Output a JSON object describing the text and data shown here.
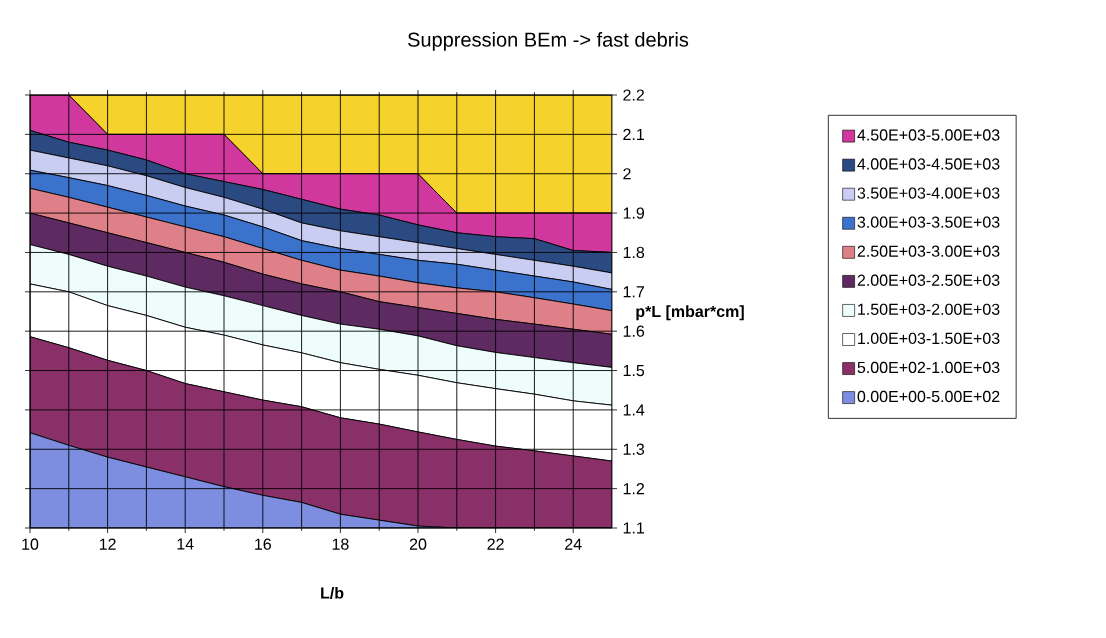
{
  "chart_data": {
    "type": "area",
    "title": "Suppression BEm -> fast debris",
    "xlabel": "L/b",
    "ylabel": "p*L [mbar*cm]",
    "x": [
      10,
      11,
      12,
      13,
      14,
      15,
      16,
      17,
      18,
      19,
      20,
      21,
      22,
      23,
      24,
      25
    ],
    "xlim": [
      10,
      25
    ],
    "xticks": [
      10,
      12,
      14,
      16,
      18,
      20,
      22,
      24
    ],
    "ylim": [
      1.1,
      2.2
    ],
    "yticks": [
      1.1,
      1.2,
      1.3,
      1.4,
      1.5,
      1.6,
      1.7,
      1.8,
      1.9,
      2,
      2.1,
      2.2
    ],
    "grid": true,
    "legend": "right",
    "series": [
      {
        "color": "#f6d32c",
        "values": [
          2.2,
          2.2,
          2.2,
          2.2,
          2.2,
          2.2,
          2.2,
          2.2,
          2.2,
          2.2,
          2.2,
          2.2,
          2.2,
          2.2,
          2.2,
          2.2
        ]
      },
      {
        "name": "4.50E+03-5.00E+03",
        "color": "#d0389e",
        "values": [
          2.2,
          2.2,
          2.1,
          2.1,
          2.1,
          2.1,
          2.0,
          2.0,
          2.0,
          2.0,
          2.0,
          1.9,
          1.9,
          1.9,
          1.9,
          1.9
        ]
      },
      {
        "name": "4.00E+03-4.50E+03",
        "color": "#2c4a82",
        "values": [
          2.11,
          2.08,
          2.06,
          2.035,
          2.0,
          1.98,
          1.96,
          1.935,
          1.91,
          1.895,
          1.87,
          1.85,
          1.84,
          1.835,
          1.805,
          1.8
        ]
      },
      {
        "name": "3.50E+03-4.00E+03",
        "color": "#c9cdf2",
        "values": [
          2.06,
          2.04,
          2.02,
          1.995,
          1.965,
          1.94,
          1.91,
          1.875,
          1.855,
          1.84,
          1.825,
          1.81,
          1.795,
          1.78,
          1.765,
          1.748
        ]
      },
      {
        "name": "3.00E+03-3.50E+03",
        "color": "#3b72cc",
        "values": [
          2.009,
          1.99,
          1.97,
          1.945,
          1.918,
          1.895,
          1.865,
          1.83,
          1.81,
          1.795,
          1.78,
          1.77,
          1.755,
          1.74,
          1.725,
          1.706
        ]
      },
      {
        "name": "2.50E+03-3.00E+03",
        "color": "#df7f88",
        "values": [
          1.963,
          1.94,
          1.915,
          1.89,
          1.865,
          1.84,
          1.81,
          1.78,
          1.755,
          1.74,
          1.723,
          1.71,
          1.7,
          1.685,
          1.669,
          1.652
        ]
      },
      {
        "name": "2.00E+03-2.50E+03",
        "color": "#5e2a62",
        "values": [
          1.9,
          1.875,
          1.85,
          1.825,
          1.8,
          1.775,
          1.745,
          1.72,
          1.7,
          1.675,
          1.66,
          1.645,
          1.63,
          1.618,
          1.605,
          1.592
        ]
      },
      {
        "name": "1.50E+03-2.00E+03",
        "color": "#eefcfc",
        "values": [
          1.82,
          1.795,
          1.765,
          1.74,
          1.712,
          1.69,
          1.665,
          1.64,
          1.618,
          1.605,
          1.588,
          1.563,
          1.546,
          1.533,
          1.52,
          1.508
        ]
      },
      {
        "name": "1.00E+03-1.50E+03",
        "color": "#ffffff",
        "values": [
          1.72,
          1.7,
          1.665,
          1.64,
          1.61,
          1.59,
          1.565,
          1.545,
          1.52,
          1.503,
          1.488,
          1.469,
          1.454,
          1.44,
          1.423,
          1.412
        ]
      },
      {
        "name": "5.00E+02-1.00E+03",
        "color": "#8a3068",
        "values": [
          1.586,
          1.558,
          1.526,
          1.5,
          1.467,
          1.446,
          1.425,
          1.408,
          1.38,
          1.364,
          1.344,
          1.325,
          1.308,
          1.296,
          1.283,
          1.27
        ]
      },
      {
        "name": "0.00E+00-5.00E+02",
        "color": "#7d8ee0",
        "values": [
          1.342,
          1.31,
          1.28,
          1.255,
          1.23,
          1.205,
          1.183,
          1.165,
          1.135,
          1.12,
          1.105,
          1.1,
          1.1,
          1.1,
          1.1,
          1.1
        ]
      }
    ]
  }
}
